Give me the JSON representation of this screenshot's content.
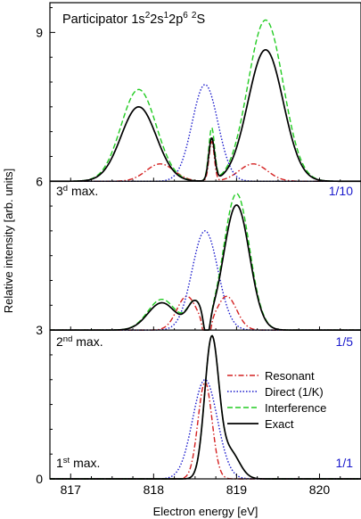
{
  "chart_data": {
    "type": "line",
    "title": "Participator 1s²2s¹2p⁶ ²S",
    "title_parts": [
      {
        "t": "Participator 1s",
        "sup": false
      },
      {
        "t": "2",
        "sup": true
      },
      {
        "t": "2s",
        "sup": false
      },
      {
        "t": "1",
        "sup": true
      },
      {
        "t": "2p",
        "sup": false
      },
      {
        "t": "6",
        "sup": true
      },
      {
        "t": " ",
        "sup": false
      },
      {
        "t": "2",
        "sup": true
      },
      {
        "t": "S",
        "sup": false
      }
    ],
    "xlabel": "Electron energy [eV]",
    "ylabel": "Relative intensity [arb. units]",
    "xlim": [
      816.75,
      820.5
    ],
    "ylim": [
      0,
      9.6
    ],
    "x_ticks": [
      817,
      818,
      819,
      820
    ],
    "y_ticks": [
      0,
      3,
      6,
      9
    ],
    "grid": false,
    "legend": {
      "placement": "right, lower panel",
      "entries": [
        "Resonant",
        "Direct (1/K)",
        "Interference",
        "Exact"
      ]
    },
    "series_styles": [
      {
        "name": "Resonant",
        "color": "#d42020",
        "dash": "dash-dot"
      },
      {
        "name": "Direct (1/K)",
        "color": "#1a1acc",
        "dash": "dotted"
      },
      {
        "name": "Interference",
        "color": "#22cc22",
        "dash": "dashed"
      },
      {
        "name": "Exact",
        "color": "#000000",
        "dash": "solid"
      }
    ],
    "panels": [
      {
        "label": "1",
        "label_sup": "st",
        "label_rest": " max.",
        "scale": "1/1",
        "baseline": 0,
        "resonant": {
          "peaks": [
            [
              818.62,
              1.95,
              0.12
            ]
          ]
        },
        "direct": {
          "peaks": [
            [
              818.62,
              2.0,
              0.21
            ]
          ]
        },
        "interference": {
          "peaks": [
            [
              818.7,
              2.8,
              0.12
            ],
            [
              818.92,
              0.55,
              0.16
            ]
          ]
        },
        "exact": {
          "peaks": [
            [
              818.7,
              2.8,
              0.12
            ],
            [
              818.92,
              0.55,
              0.16
            ]
          ]
        }
      },
      {
        "label": "2",
        "label_sup": "nd",
        "label_rest": " max.",
        "scale": "1/5",
        "baseline": 3,
        "resonant": {
          "peaks": [
            [
              818.4,
              0.68,
              0.17
            ],
            [
              818.88,
              0.68,
              0.17
            ]
          ],
          "dip": [
            818.64,
            0.6,
            0.05
          ]
        },
        "direct": {
          "peaks": [
            [
              818.62,
              2.0,
              0.22
            ]
          ]
        },
        "interference": {
          "peaks": [
            [
              818.1,
              0.62,
              0.24
            ],
            [
              818.5,
              0.55,
              0.13
            ],
            [
              819.0,
              2.75,
              0.22
            ]
          ],
          "dip": [
            818.64,
            0.55,
            0.05
          ]
        },
        "exact": {
          "peaks": [
            [
              818.1,
              0.55,
              0.24
            ],
            [
              818.5,
              0.55,
              0.13
            ],
            [
              819.0,
              2.52,
              0.22
            ]
          ],
          "dip": [
            818.64,
            0.5,
            0.05
          ]
        }
      },
      {
        "label": "3",
        "label_sup": "d",
        "label_rest": " max.",
        "scale": "1/10",
        "baseline": 6,
        "resonant": {
          "peaks": [
            [
              818.08,
              0.35,
              0.24
            ],
            [
              818.7,
              0.8,
              0.045
            ],
            [
              819.2,
              0.35,
              0.24
            ]
          ]
        },
        "direct": {
          "peaks": [
            [
              818.62,
              1.95,
              0.22
            ]
          ]
        },
        "interference": {
          "peaks": [
            [
              817.82,
              1.85,
              0.3
            ],
            [
              818.7,
              1.05,
              0.05
            ],
            [
              819.35,
              3.25,
              0.3
            ]
          ]
        },
        "exact": {
          "peaks": [
            [
              817.82,
              1.5,
              0.3
            ],
            [
              818.7,
              0.85,
              0.05
            ],
            [
              819.35,
              2.65,
              0.3
            ]
          ]
        }
      }
    ]
  }
}
